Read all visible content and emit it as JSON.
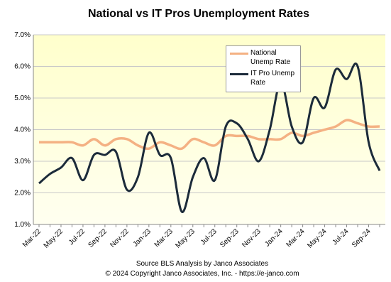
{
  "chart_data": {
    "type": "line",
    "title": "National vs IT Pros Unemployment Rates",
    "source": "Source BLS Analysis by Janco Associates",
    "copyright": "© 2024 Copyright Janco Associates, Inc. - https://e-janco.com",
    "categories": [
      "Mar-22",
      null,
      "May-22",
      null,
      "Jul-22",
      null,
      "Sep-22",
      null,
      "Nov-22",
      null,
      "Jan-23",
      null,
      "Mar-23",
      null,
      "May-23",
      null,
      "Jul-23",
      null,
      "Sep-23",
      null,
      "Nov-23",
      null,
      "Jan-24",
      null,
      "Mar-24",
      null,
      "May-24",
      null,
      "Jul-24",
      null,
      "Sep-24",
      null
    ],
    "series": [
      {
        "name": "National Unemp Rate",
        "color": "#f4b183",
        "values": [
          3.6,
          3.6,
          3.6,
          3.6,
          3.5,
          3.7,
          3.5,
          3.7,
          3.7,
          3.5,
          3.4,
          3.6,
          3.5,
          3.4,
          3.7,
          3.6,
          3.5,
          3.8,
          3.8,
          3.8,
          3.7,
          3.7,
          3.7,
          3.9,
          3.8,
          3.9,
          4.0,
          4.1,
          4.3,
          4.2,
          4.1,
          4.1
        ]
      },
      {
        "name": "IT Pro Unemp Rate",
        "color": "#1c2b3a",
        "values": [
          2.3,
          2.6,
          2.8,
          3.1,
          2.4,
          3.2,
          3.2,
          3.3,
          2.1,
          2.5,
          3.9,
          3.2,
          3.1,
          1.4,
          2.5,
          3.1,
          2.4,
          4.1,
          4.2,
          3.7,
          3.0,
          4.0,
          5.5,
          4.1,
          3.6,
          5.0,
          4.7,
          5.9,
          5.6,
          6.0,
          3.6,
          2.7
        ]
      }
    ],
    "ylim": [
      1,
      7
    ],
    "yticks": [
      {
        "value": 1,
        "label": "1.0%"
      },
      {
        "value": 2,
        "label": "2.0%"
      },
      {
        "value": 3,
        "label": "3.0%"
      },
      {
        "value": 4,
        "label": "4.0%"
      },
      {
        "value": 5,
        "label": "5.0%"
      },
      {
        "value": 6,
        "label": "6.0%"
      },
      {
        "value": 7,
        "label": "7.0%"
      }
    ],
    "grid": true
  }
}
